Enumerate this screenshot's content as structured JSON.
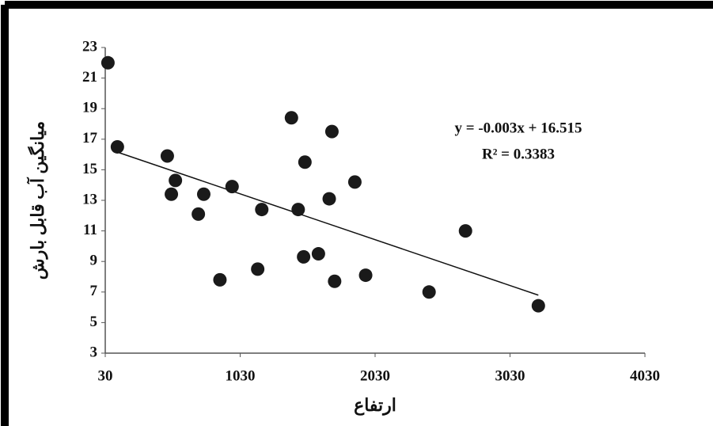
{
  "chart_data": {
    "type": "scatter",
    "x_label": "ارتفاع",
    "y_label": "میانگین آب قابل بارش",
    "x": [
      50,
      120,
      490,
      550,
      520,
      760,
      720,
      970,
      880,
      1190,
      1160,
      1410,
      1510,
      1460,
      1710,
      1690,
      1500,
      1610,
      1730,
      1880,
      1960,
      2430,
      2700,
      3240
    ],
    "series": [
      {
        "color": "#1a1a1a",
        "values": [
          22,
          16.5,
          15.9,
          14.3,
          13.4,
          13.4,
          12.1,
          13.9,
          7.8,
          12.4,
          8.5,
          18.4,
          15.5,
          12.4,
          17.5,
          13.1,
          9.3,
          9.5,
          7.7,
          14.2,
          8.1,
          7.0,
          11.0,
          6.1
        ]
      }
    ],
    "trendline": {
      "equation": "y = -0.003x + 16.515",
      "r_squared": "R² = 0.3383",
      "slope": -0.003,
      "intercept": 16.515,
      "x": [
        120,
        3240
      ]
    },
    "xlim": [
      30,
      4030
    ],
    "xticks": [
      30,
      1030,
      2030,
      3030,
      4030
    ],
    "ylim": [
      3,
      23
    ],
    "yticks": [
      3,
      5,
      7,
      9,
      11,
      13,
      15,
      17,
      19,
      21,
      23
    ]
  }
}
